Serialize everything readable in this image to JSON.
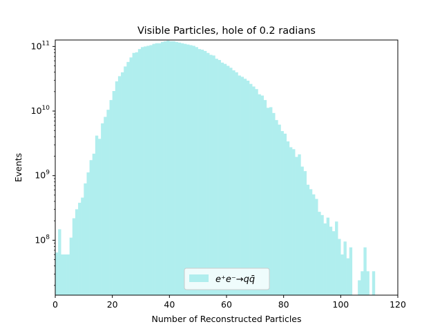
{
  "chart_data": {
    "type": "bar",
    "title": "Visible Particles, hole of 0.2 radians",
    "xlabel": "Number of Reconstructed Particles",
    "ylabel": "Events",
    "xlim": [
      0,
      120
    ],
    "ylim_log10": [
      7.15,
      11.1
    ],
    "yscale": "log",
    "bin_width": 1,
    "bar_color": "#b0eeee",
    "x_ticks": [
      {
        "value": 0,
        "label": "0"
      },
      {
        "value": 20,
        "label": "20"
      },
      {
        "value": 40,
        "label": "40"
      },
      {
        "value": 60,
        "label": "60"
      },
      {
        "value": 80,
        "label": "80"
      },
      {
        "value": 100,
        "label": "100"
      },
      {
        "value": 120,
        "label": "120"
      }
    ],
    "y_ticks": [
      {
        "log10": 8,
        "base": "10",
        "exp": "8"
      },
      {
        "log10": 9,
        "base": "10",
        "exp": "9"
      },
      {
        "log10": 10,
        "base": "10",
        "exp": "10"
      },
      {
        "log10": 11,
        "base": "10",
        "exp": "11"
      }
    ],
    "legend": {
      "placement": "lower-center",
      "entries": [
        {
          "name": "e⁺e⁻→qq̄",
          "color": "#b0eeee"
        }
      ]
    },
    "bins_log10": [
      7.81,
      8.17,
      7.78,
      7.78,
      7.78,
      8.04,
      8.34,
      8.48,
      8.58,
      8.66,
      8.88,
      9.05,
      9.24,
      9.34,
      9.62,
      9.57,
      9.81,
      9.91,
      10.02,
      10.17,
      10.31,
      10.46,
      10.54,
      10.6,
      10.69,
      10.76,
      10.83,
      10.9,
      10.91,
      10.96,
      10.99,
      11.0,
      11.01,
      11.02,
      11.04,
      11.05,
      11.05,
      11.07,
      11.08,
      11.09,
      11.08,
      11.08,
      11.07,
      11.06,
      11.05,
      11.04,
      11.03,
      11.02,
      11.01,
      10.99,
      10.96,
      10.95,
      10.93,
      10.9,
      10.87,
      10.86,
      10.81,
      10.79,
      10.75,
      10.73,
      10.7,
      10.67,
      10.63,
      10.6,
      10.55,
      10.53,
      10.5,
      10.47,
      10.42,
      10.38,
      10.34,
      10.26,
      10.24,
      10.17,
      10.05,
      10.06,
      9.97,
      9.86,
      9.79,
      9.69,
      9.65,
      9.53,
      9.44,
      9.41,
      9.29,
      9.33,
      9.14,
      9.07,
      8.86,
      8.79,
      8.71,
      8.64,
      8.44,
      8.39,
      8.26,
      8.35,
      8.21,
      8.14,
      8.29,
      8.02,
      7.78,
      7.98,
      7.72,
      7.89,
      null,
      null,
      7.38,
      7.52,
      7.89,
      7.52,
      null,
      7.52,
      null,
      null,
      null,
      null,
      null,
      null,
      null,
      null
    ]
  }
}
